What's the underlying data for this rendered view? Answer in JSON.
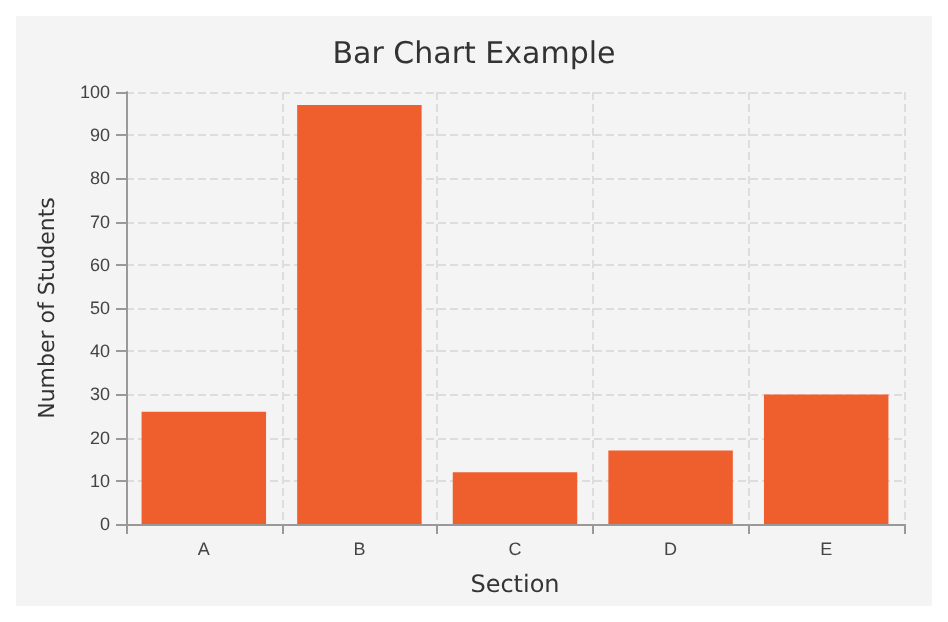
{
  "chart_data": {
    "type": "bar",
    "title": "Bar Chart Example",
    "xlabel": "Section",
    "ylabel": "Number of Students",
    "categories": [
      "A",
      "B",
      "C",
      "D",
      "E"
    ],
    "values": [
      26,
      97,
      12,
      17,
      30
    ],
    "color": "#ef5f2e",
    "ylim": [
      0,
      100
    ],
    "yticks": [
      0,
      10,
      20,
      30,
      40,
      50,
      60,
      70,
      80,
      90,
      100
    ],
    "grid": true
  }
}
